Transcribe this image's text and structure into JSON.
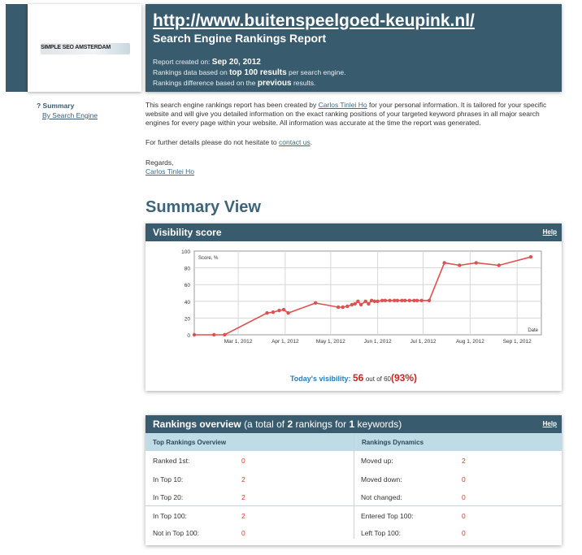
{
  "logo": {
    "text": "SIMPLE SEO AMSTERDAM"
  },
  "header": {
    "site_url": "http://www.buitenspeelgoed-keupink.nl/",
    "report_title": "Search Engine Rankings Report",
    "created_label": "Report created on:",
    "created_date": "Sep 20, 2012",
    "line2_pre": "Rankings data based on",
    "line2_bold": "top 100 results",
    "line2_post": "per search engine.",
    "line3_pre": "Rankings difference based on the",
    "line3_bold": "previous",
    "line3_post": "results."
  },
  "nav": {
    "summary": "? Summary",
    "by_engine": "By Search Engine"
  },
  "intro": {
    "p1_pre": "This search engine rankings report has been created by",
    "author": "Carlos Tinlei Ho",
    "p1_post": "for your personal information. It is tailored for your specific website and will give you detailed information on the exact ranking positions of your targeted keyword phrases in all major search engines for every page within your website. All information was accurate at the time the report was generated.",
    "p2_pre": "For further details please do not hesitate to",
    "contact": "contact us",
    "p2_post": ".",
    "regards": "Regards,",
    "signature": "Carlos Tinlei Ho"
  },
  "summary_title": "Summary View",
  "visibility": {
    "title": "Visibility score",
    "help": "Help",
    "today_label": "Today's visibility:",
    "today_value": "56",
    "out_of": "out of 60",
    "percent": "(93%)"
  },
  "chart_data": {
    "type": "line",
    "ylabel": "Score, %",
    "xlabel": "Date",
    "ylim": [
      0,
      100
    ],
    "yticks": [
      "0",
      "20",
      "40",
      "60",
      "80",
      "100"
    ],
    "xticks": [
      "Mar 1, 2012",
      "Apr 1, 2012",
      "May 1, 2012",
      "Jun 1, 2012",
      "Jul 1, 2012",
      "Aug 1, 2012",
      "Sep 1, 2012"
    ],
    "grid": true,
    "line_color": "#e05050",
    "x": [
      "2012-02-01",
      "2012-02-14",
      "2012-02-21",
      "2012-03-20",
      "2012-03-24",
      "2012-03-28",
      "2012-03-31",
      "2012-04-03",
      "2012-04-21",
      "2012-05-06",
      "2012-05-09",
      "2012-05-12",
      "2012-05-15",
      "2012-05-17",
      "2012-05-19",
      "2012-05-21",
      "2012-05-24",
      "2012-05-26",
      "2012-05-28",
      "2012-05-30",
      "2012-06-01",
      "2012-06-04",
      "2012-06-06",
      "2012-06-09",
      "2012-06-12",
      "2012-06-14",
      "2012-06-17",
      "2012-06-19",
      "2012-06-22",
      "2012-06-25",
      "2012-06-27",
      "2012-06-30",
      "2012-07-05",
      "2012-07-15",
      "2012-07-25",
      "2012-08-05",
      "2012-08-20",
      "2012-09-10"
    ],
    "y": [
      0,
      0,
      0,
      26,
      27,
      29,
      30,
      26,
      38,
      33,
      33,
      34,
      36,
      37,
      40,
      36,
      40,
      37,
      41,
      40,
      40,
      41,
      41,
      41,
      41,
      41,
      41,
      41,
      41,
      41,
      41,
      41,
      41,
      86,
      83,
      86,
      83,
      93
    ]
  },
  "rankings": {
    "title": "Rankings overview",
    "title_pre": "(a total of",
    "total": "2",
    "title_mid": "rankings for",
    "keywords": "1",
    "title_post": "keywords)",
    "help": "Help",
    "left_head": "Top Rankings Overview",
    "right_head": "Rankings Dynamics",
    "left_rows": [
      {
        "label": "Ranked 1st:",
        "value": "0"
      },
      {
        "label": "In Top 10:",
        "value": "2"
      },
      {
        "label": "In Top 20:",
        "value": "2"
      },
      {
        "label": "In Top 100:",
        "value": "2"
      },
      {
        "label": "Not in Top 100:",
        "value": "0"
      }
    ],
    "right_rows": [
      {
        "label": "Moved up:",
        "value": "2"
      },
      {
        "label": "Moved down:",
        "value": "0"
      },
      {
        "label": "Not changed:",
        "value": "0"
      },
      {
        "label": "Entered Top 100:",
        "value": "0"
      },
      {
        "label": "Left Top 100:",
        "value": "0"
      }
    ]
  }
}
